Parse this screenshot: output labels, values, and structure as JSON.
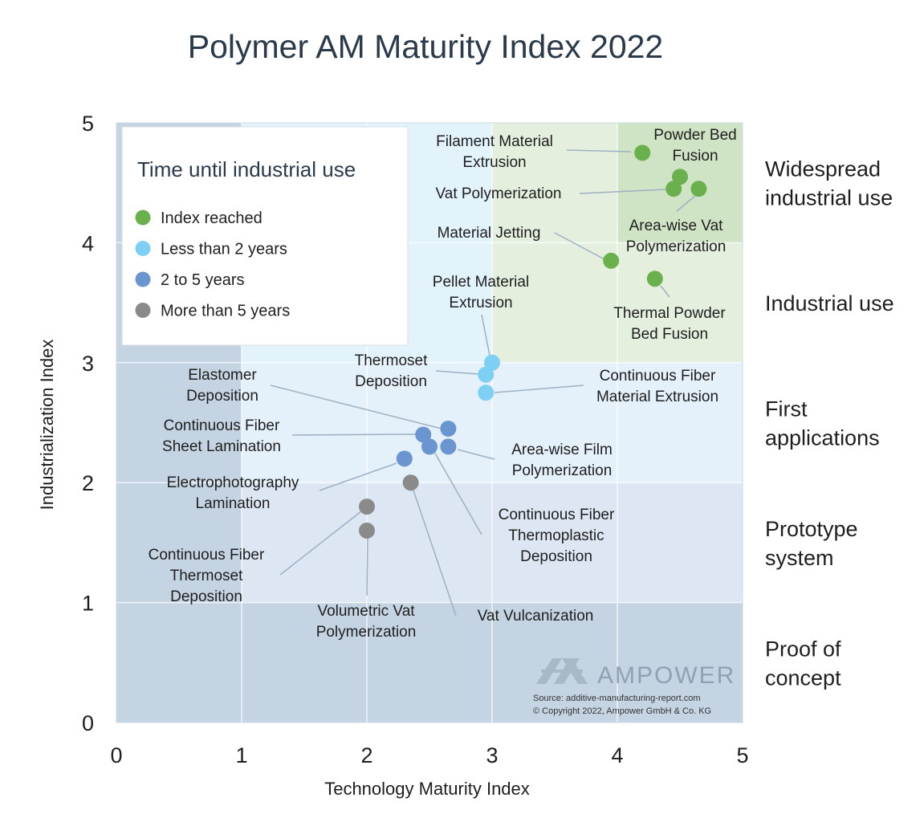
{
  "chart_data": {
    "type": "scatter",
    "title": "Polymer AM Maturity Index 2022",
    "xlabel": "Technology Maturity Index",
    "ylabel": "Industrialization Index",
    "xlim": [
      0,
      5
    ],
    "ylim": [
      0,
      5
    ],
    "xticks": [
      "0",
      "1",
      "2",
      "3",
      "4",
      "5"
    ],
    "yticks": [
      "0",
      "1",
      "2",
      "3",
      "4",
      "5"
    ],
    "grid": true,
    "legend": {
      "title": "Time until industrial use",
      "position": "top-left",
      "items": [
        {
          "name": "Index reached",
          "color": "#6ab04c"
        },
        {
          "name": "Less than 2 years",
          "color": "#7ecff4"
        },
        {
          "name": "2 to 5 years",
          "color": "#6a95d0"
        },
        {
          "name": "More than 5 years",
          "color": "#8a8a8a"
        }
      ]
    },
    "zones": [
      {
        "label": [
          "Widespread",
          "industrial use"
        ],
        "ymin": 4,
        "ymax": 5
      },
      {
        "label": [
          "Industrial use"
        ],
        "ymin": 3,
        "ymax": 4
      },
      {
        "label": [
          "First",
          "applications"
        ],
        "ymin": 2,
        "ymax": 3
      },
      {
        "label": [
          "Prototype",
          "system"
        ],
        "ymin": 1,
        "ymax": 2
      },
      {
        "label": [
          "Proof of",
          "concept"
        ],
        "ymin": 0,
        "ymax": 1
      }
    ],
    "points": [
      {
        "label": [
          "Filament Material",
          "Extrusion"
        ],
        "x": 4.2,
        "y": 4.75,
        "category": "Index reached"
      },
      {
        "label": [
          "Powder Bed",
          "Fusion"
        ],
        "x": 4.5,
        "y": 4.55,
        "category": "Index reached"
      },
      {
        "label": [
          "Vat Polymerization"
        ],
        "x": 4.45,
        "y": 4.45,
        "category": "Index reached"
      },
      {
        "label": [
          "Area-wise Vat",
          "Polymerization"
        ],
        "x": 4.65,
        "y": 4.45,
        "category": "Index reached"
      },
      {
        "label": [
          "Material Jetting"
        ],
        "x": 3.95,
        "y": 3.85,
        "category": "Index reached"
      },
      {
        "label": [
          "Thermal Powder",
          "Bed Fusion"
        ],
        "x": 4.3,
        "y": 3.7,
        "category": "Index reached"
      },
      {
        "label": [
          "Pellet Material",
          "Extrusion"
        ],
        "x": 3.0,
        "y": 3.0,
        "category": "Less than 2 years"
      },
      {
        "label": [
          "Thermoset",
          "Deposition"
        ],
        "x": 2.95,
        "y": 2.9,
        "category": "Less than 2 years"
      },
      {
        "label": [
          "Continuous Fiber",
          "Material Extrusion"
        ],
        "x": 2.95,
        "y": 2.75,
        "category": "Less than 2 years"
      },
      {
        "label": [
          "Elastomer",
          "Deposition"
        ],
        "x": 2.65,
        "y": 2.45,
        "category": "2 to 5 years"
      },
      {
        "label": [
          "Continuous Fiber",
          "Sheet Lamination"
        ],
        "x": 2.45,
        "y": 2.4,
        "category": "2 to 5 years"
      },
      {
        "label": [
          "Area-wise Film",
          "Polymerization"
        ],
        "x": 2.65,
        "y": 2.3,
        "category": "2 to 5 years"
      },
      {
        "label": [
          "Continuous Fiber",
          "Thermoplastic",
          "Deposition"
        ],
        "x": 2.5,
        "y": 2.3,
        "category": "2 to 5 years"
      },
      {
        "label": [
          "Electrophotography",
          "Lamination"
        ],
        "x": 2.3,
        "y": 2.2,
        "category": "2 to 5 years"
      },
      {
        "label": [
          "Vat Vulcanization"
        ],
        "x": 2.35,
        "y": 2.0,
        "category": "More than 5 years"
      },
      {
        "label": [
          "Continuous Fiber",
          "Thermoset",
          "Deposition"
        ],
        "x": 2.0,
        "y": 1.8,
        "category": "More than 5 years"
      },
      {
        "label": [
          "Volumetric Vat",
          "Polymerization"
        ],
        "x": 2.0,
        "y": 1.6,
        "category": "More than 5 years"
      }
    ]
  },
  "branding": {
    "name": "AMPOWER",
    "source": "Source: additive-manufacturing-report.com",
    "copyright": "© Copyright 2022, Ampower GmbH & Co. KG"
  }
}
